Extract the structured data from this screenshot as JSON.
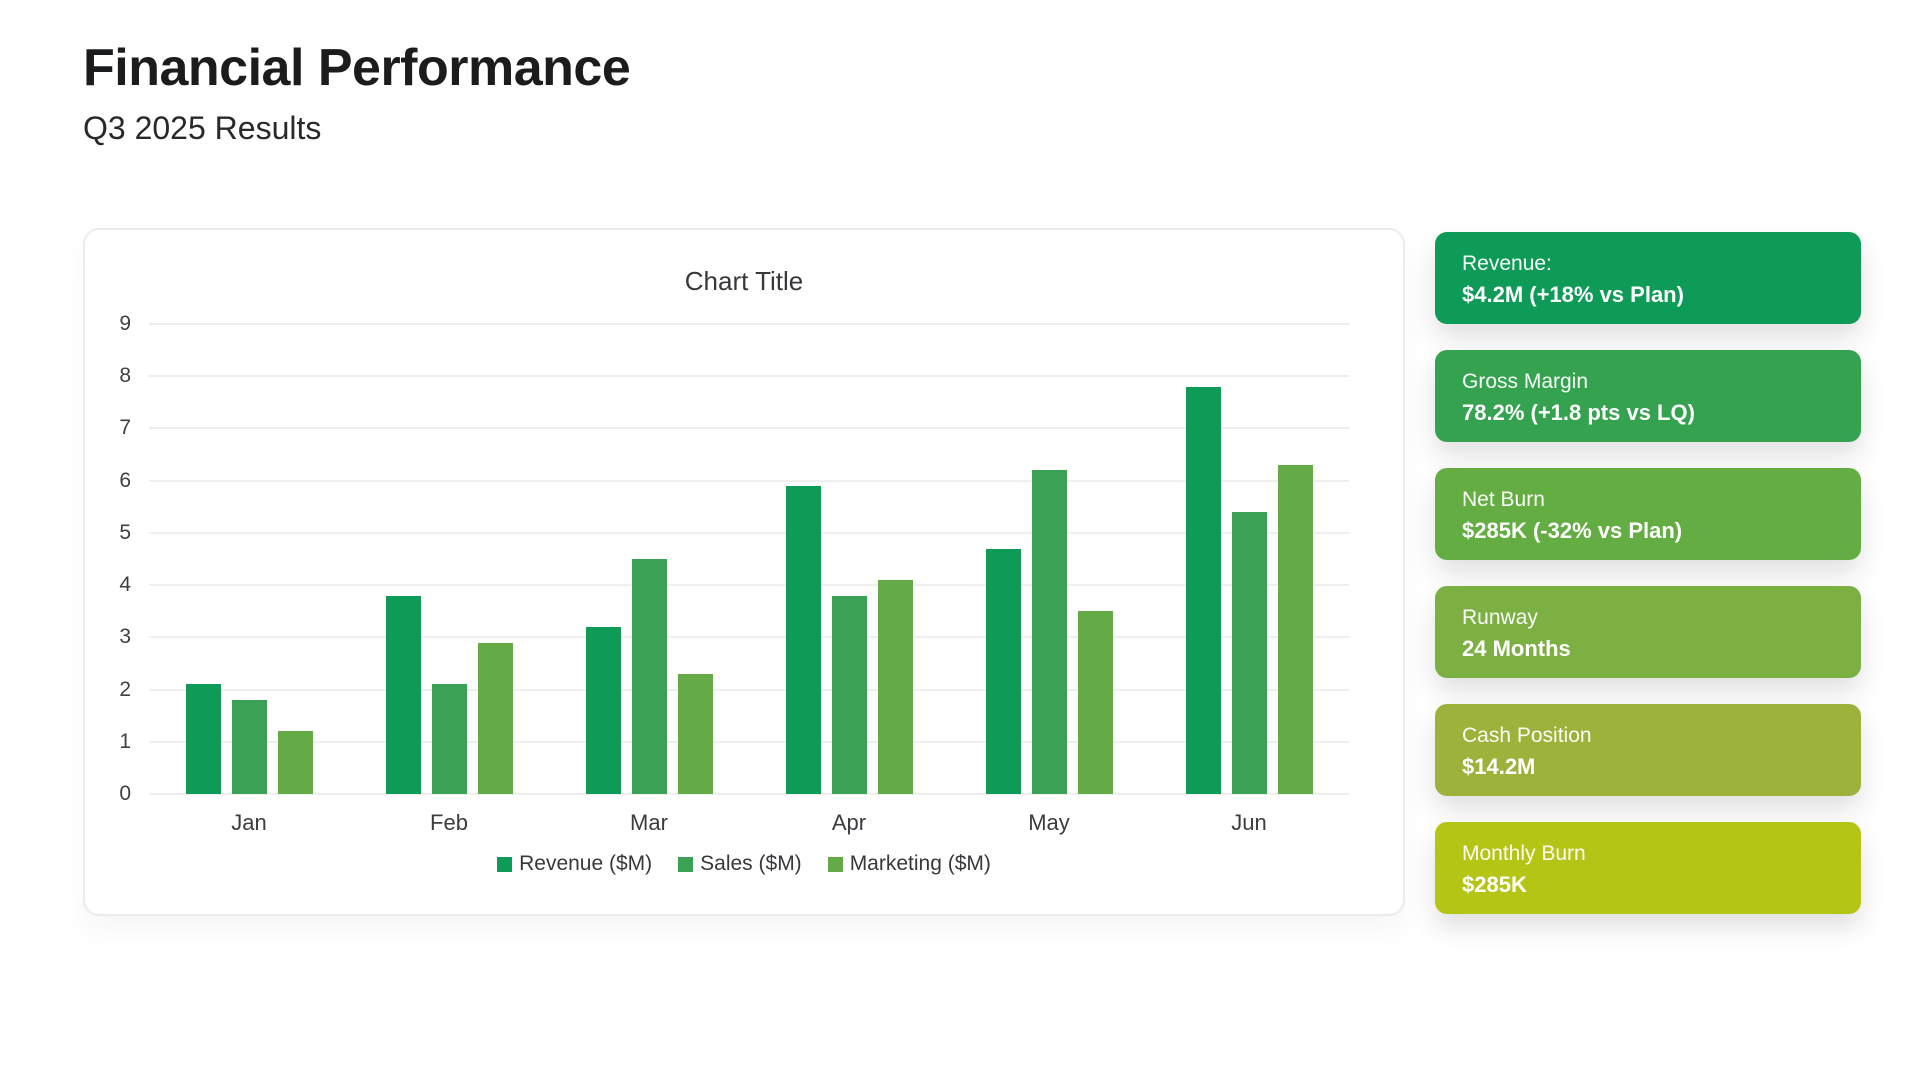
{
  "page": {
    "title": "Financial Performance",
    "subtitle": "Q3 2025 Results"
  },
  "chart_data": {
    "type": "bar",
    "title": "Chart Title",
    "categories": [
      "Jan",
      "Feb",
      "Mar",
      "Apr",
      "May",
      "Jun"
    ],
    "series": [
      {
        "name": "Revenue ($M)",
        "color": "#0d9b57",
        "values": [
          2.1,
          3.8,
          3.2,
          5.9,
          4.7,
          7.8
        ]
      },
      {
        "name": "Sales ($M)",
        "color": "#3aa155",
        "values": [
          1.8,
          2.1,
          4.5,
          3.8,
          6.2,
          5.4
        ]
      },
      {
        "name": "Marketing ($M)",
        "color": "#64ab47",
        "values": [
          1.2,
          2.9,
          2.3,
          4.1,
          3.5,
          6.3
        ]
      }
    ],
    "ylim": [
      0,
      9
    ],
    "ytick_step": 1,
    "yticks": [
      0,
      1,
      2,
      3,
      4,
      5,
      6,
      7,
      8,
      9
    ],
    "grid": true,
    "legend_position": "bottom"
  },
  "kpi_cards": [
    {
      "label": "Revenue:",
      "value": "$4.2M (+18% vs Plan)",
      "color": "#0d9b57"
    },
    {
      "label": "Gross Margin",
      "value": "78.2% (+1.8 pts vs LQ)",
      "color": "#35a24f"
    },
    {
      "label": "Net Burn",
      "value": "$285K (-32% vs Plan)",
      "color": "#64ad42"
    },
    {
      "label": "Runway",
      "value": "24 Months",
      "color": "#7db043"
    },
    {
      "label": "Cash Position",
      "value": "$14.2M",
      "color": "#9db23a"
    },
    {
      "label": "Monthly Burn",
      "value": "$285K",
      "color": "#b5c516"
    }
  ]
}
